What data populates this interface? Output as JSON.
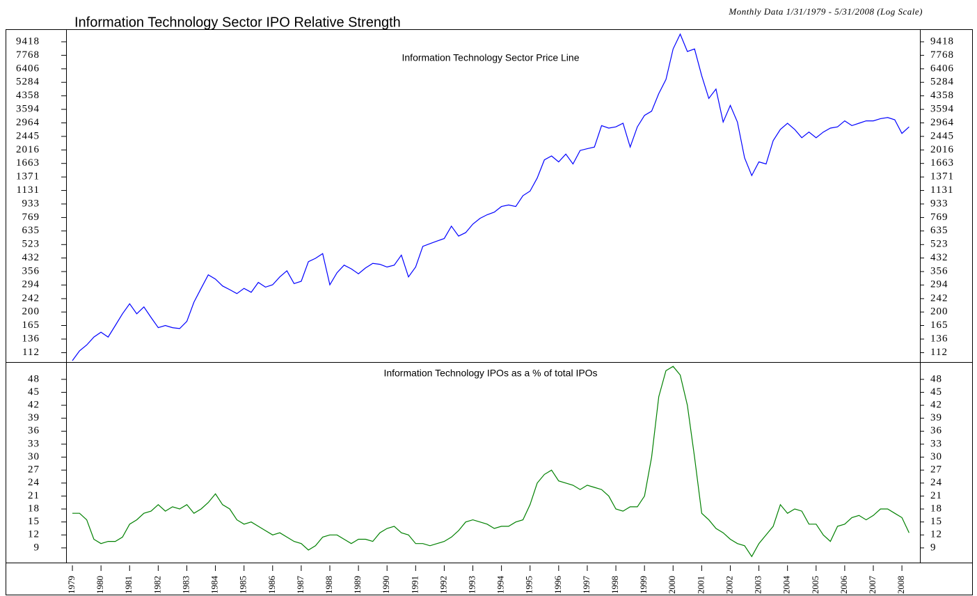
{
  "chart_data": [
    {
      "type": "line",
      "title": "Information Technology Sector IPO Relative Strength",
      "subtitle": "Monthly Data 1/31/1979 - 5/31/2008 (Log Scale)",
      "annotation": "Information Technology Sector Price Line",
      "log": true,
      "color": "#0000ff",
      "xlim": [
        1978.78,
        2008.63
      ],
      "ylim": [
        98,
        11260
      ],
      "yticks": [
        112,
        136,
        165,
        200,
        242,
        294,
        356,
        432,
        523,
        635,
        769,
        933,
        1131,
        1371,
        1663,
        2016,
        2445,
        2964,
        3594,
        4358,
        5284,
        6406,
        7768,
        9418
      ],
      "x": [
        1979.0,
        1979.25,
        1979.5,
        1979.75,
        1980.0,
        1980.25,
        1980.5,
        1980.75,
        1981.0,
        1981.25,
        1981.5,
        1981.75,
        1982.0,
        1982.25,
        1982.5,
        1982.75,
        1983.0,
        1983.25,
        1983.5,
        1983.75,
        1984.0,
        1984.25,
        1984.5,
        1984.75,
        1985.0,
        1985.25,
        1985.5,
        1985.75,
        1986.0,
        1986.25,
        1986.5,
        1986.75,
        1987.0,
        1987.25,
        1987.5,
        1987.75,
        1988.0,
        1988.25,
        1988.5,
        1988.75,
        1989.0,
        1989.25,
        1989.5,
        1989.75,
        1990.0,
        1990.25,
        1990.5,
        1990.75,
        1991.0,
        1991.25,
        1991.5,
        1991.75,
        1992.0,
        1992.25,
        1992.5,
        1992.75,
        1993.0,
        1993.25,
        1993.5,
        1993.75,
        1994.0,
        1994.25,
        1994.5,
        1994.75,
        1995.0,
        1995.25,
        1995.5,
        1995.75,
        1996.0,
        1996.25,
        1996.5,
        1996.75,
        1997.0,
        1997.25,
        1997.5,
        1997.75,
        1998.0,
        1998.25,
        1998.5,
        1998.75,
        1999.0,
        1999.25,
        1999.5,
        1999.75,
        2000.0,
        2000.25,
        2000.5,
        2000.75,
        2001.0,
        2001.25,
        2001.5,
        2001.75,
        2002.0,
        2002.25,
        2002.5,
        2002.75,
        2003.0,
        2003.25,
        2003.5,
        2003.75,
        2004.0,
        2004.25,
        2004.5,
        2004.75,
        2005.0,
        2005.25,
        2005.5,
        2005.75,
        2006.0,
        2006.25,
        2006.5,
        2006.75,
        2007.0,
        2007.25,
        2007.5,
        2007.75,
        2008.0,
        2008.25
      ],
      "values": [
        100,
        115,
        125,
        140,
        150,
        140,
        165,
        195,
        225,
        195,
        215,
        185,
        160,
        165,
        160,
        158,
        175,
        230,
        280,
        340,
        320,
        290,
        275,
        260,
        280,
        265,
        305,
        285,
        295,
        330,
        360,
        300,
        310,
        410,
        430,
        460,
        295,
        350,
        390,
        370,
        345,
        375,
        400,
        395,
        380,
        390,
        450,
        330,
        380,
        510,
        530,
        550,
        570,
        680,
        590,
        620,
        700,
        760,
        800,
        830,
        900,
        920,
        900,
        1050,
        1120,
        1350,
        1750,
        1850,
        1700,
        1900,
        1650,
        2000,
        2050,
        2100,
        2850,
        2750,
        2800,
        2950,
        2100,
        2800,
        3300,
        3500,
        4500,
        5500,
        8500,
        10500,
        8200,
        8500,
        5800,
        4200,
        4800,
        3000,
        3800,
        3000,
        1800,
        1400,
        1700,
        1650,
        2300,
        2700,
        2950,
        2700,
        2400,
        2600,
        2400,
        2600,
        2750,
        2800,
        3050,
        2850,
        2950,
        3050,
        3050,
        3150,
        3200,
        3100,
        2550,
        2800
      ]
    },
    {
      "type": "line",
      "annotation": "Information Technology IPOs as a % of total IPOs",
      "color": "#008000",
      "xlim": [
        1978.78,
        2008.63
      ],
      "ylim": [
        5.6,
        52
      ],
      "yticks": [
        9,
        12,
        15,
        18,
        21,
        24,
        27,
        30,
        33,
        36,
        39,
        42,
        45,
        48
      ],
      "xticks": [
        1979,
        1980,
        1981,
        1982,
        1983,
        1984,
        1985,
        1986,
        1987,
        1988,
        1989,
        1990,
        1991,
        1992,
        1993,
        1994,
        1995,
        1996,
        1997,
        1998,
        1999,
        2000,
        2001,
        2002,
        2003,
        2004,
        2005,
        2006,
        2007,
        2008
      ],
      "x": [
        1979.0,
        1979.25,
        1979.5,
        1979.75,
        1980.0,
        1980.25,
        1980.5,
        1980.75,
        1981.0,
        1981.25,
        1981.5,
        1981.75,
        1982.0,
        1982.25,
        1982.5,
        1982.75,
        1983.0,
        1983.25,
        1983.5,
        1983.75,
        1984.0,
        1984.25,
        1984.5,
        1984.75,
        1985.0,
        1985.25,
        1985.5,
        1985.75,
        1986.0,
        1986.25,
        1986.5,
        1986.75,
        1987.0,
        1987.25,
        1987.5,
        1987.75,
        1988.0,
        1988.25,
        1988.5,
        1988.75,
        1989.0,
        1989.25,
        1989.5,
        1989.75,
        1990.0,
        1990.25,
        1990.5,
        1990.75,
        1991.0,
        1991.25,
        1991.5,
        1991.75,
        1992.0,
        1992.25,
        1992.5,
        1992.75,
        1993.0,
        1993.25,
        1993.5,
        1993.75,
        1994.0,
        1994.25,
        1994.5,
        1994.75,
        1995.0,
        1995.25,
        1995.5,
        1995.75,
        1996.0,
        1996.25,
        1996.5,
        1996.75,
        1997.0,
        1997.25,
        1997.5,
        1997.75,
        1998.0,
        1998.25,
        1998.5,
        1998.75,
        1999.0,
        1999.25,
        1999.5,
        1999.75,
        2000.0,
        2000.25,
        2000.5,
        2000.75,
        2001.0,
        2001.25,
        2001.5,
        2001.75,
        2002.0,
        2002.25,
        2002.5,
        2002.75,
        2003.0,
        2003.25,
        2003.5,
        2003.75,
        2004.0,
        2004.25,
        2004.5,
        2004.75,
        2005.0,
        2005.25,
        2005.5,
        2005.75,
        2006.0,
        2006.25,
        2006.5,
        2006.75,
        2007.0,
        2007.25,
        2007.5,
        2007.75,
        2008.0,
        2008.25
      ],
      "values": [
        17,
        17,
        15.5,
        11,
        10,
        10.5,
        10.5,
        11.5,
        14.5,
        15.5,
        17,
        17.5,
        19,
        17.5,
        18.5,
        18,
        19,
        17,
        18,
        19.5,
        21.5,
        19,
        18,
        15.5,
        14.5,
        15,
        14,
        13,
        12,
        12.5,
        11.5,
        10.5,
        10,
        8.5,
        9.5,
        11.5,
        12,
        12,
        11,
        10,
        11,
        11,
        10.5,
        12.5,
        13.5,
        14,
        12.5,
        12,
        10,
        10,
        9.5,
        10,
        10.5,
        11.5,
        13,
        15,
        15.5,
        15,
        14.5,
        13.5,
        14,
        14,
        15,
        15.5,
        19,
        24,
        26,
        27,
        24.5,
        24,
        23.5,
        22.5,
        23.5,
        23,
        22.5,
        21,
        18,
        17.5,
        18.5,
        18.5,
        21,
        30,
        44,
        50,
        51,
        49,
        42,
        30,
        17,
        15.5,
        13.5,
        12.5,
        11,
        10,
        9.5,
        7,
        10,
        12,
        14,
        19,
        17,
        18,
        17.5,
        14.5,
        14.5,
        12,
        10.5,
        14,
        14.5,
        16,
        16.5,
        15.5,
        16.5,
        18,
        18,
        17,
        16,
        12.5
      ]
    }
  ]
}
